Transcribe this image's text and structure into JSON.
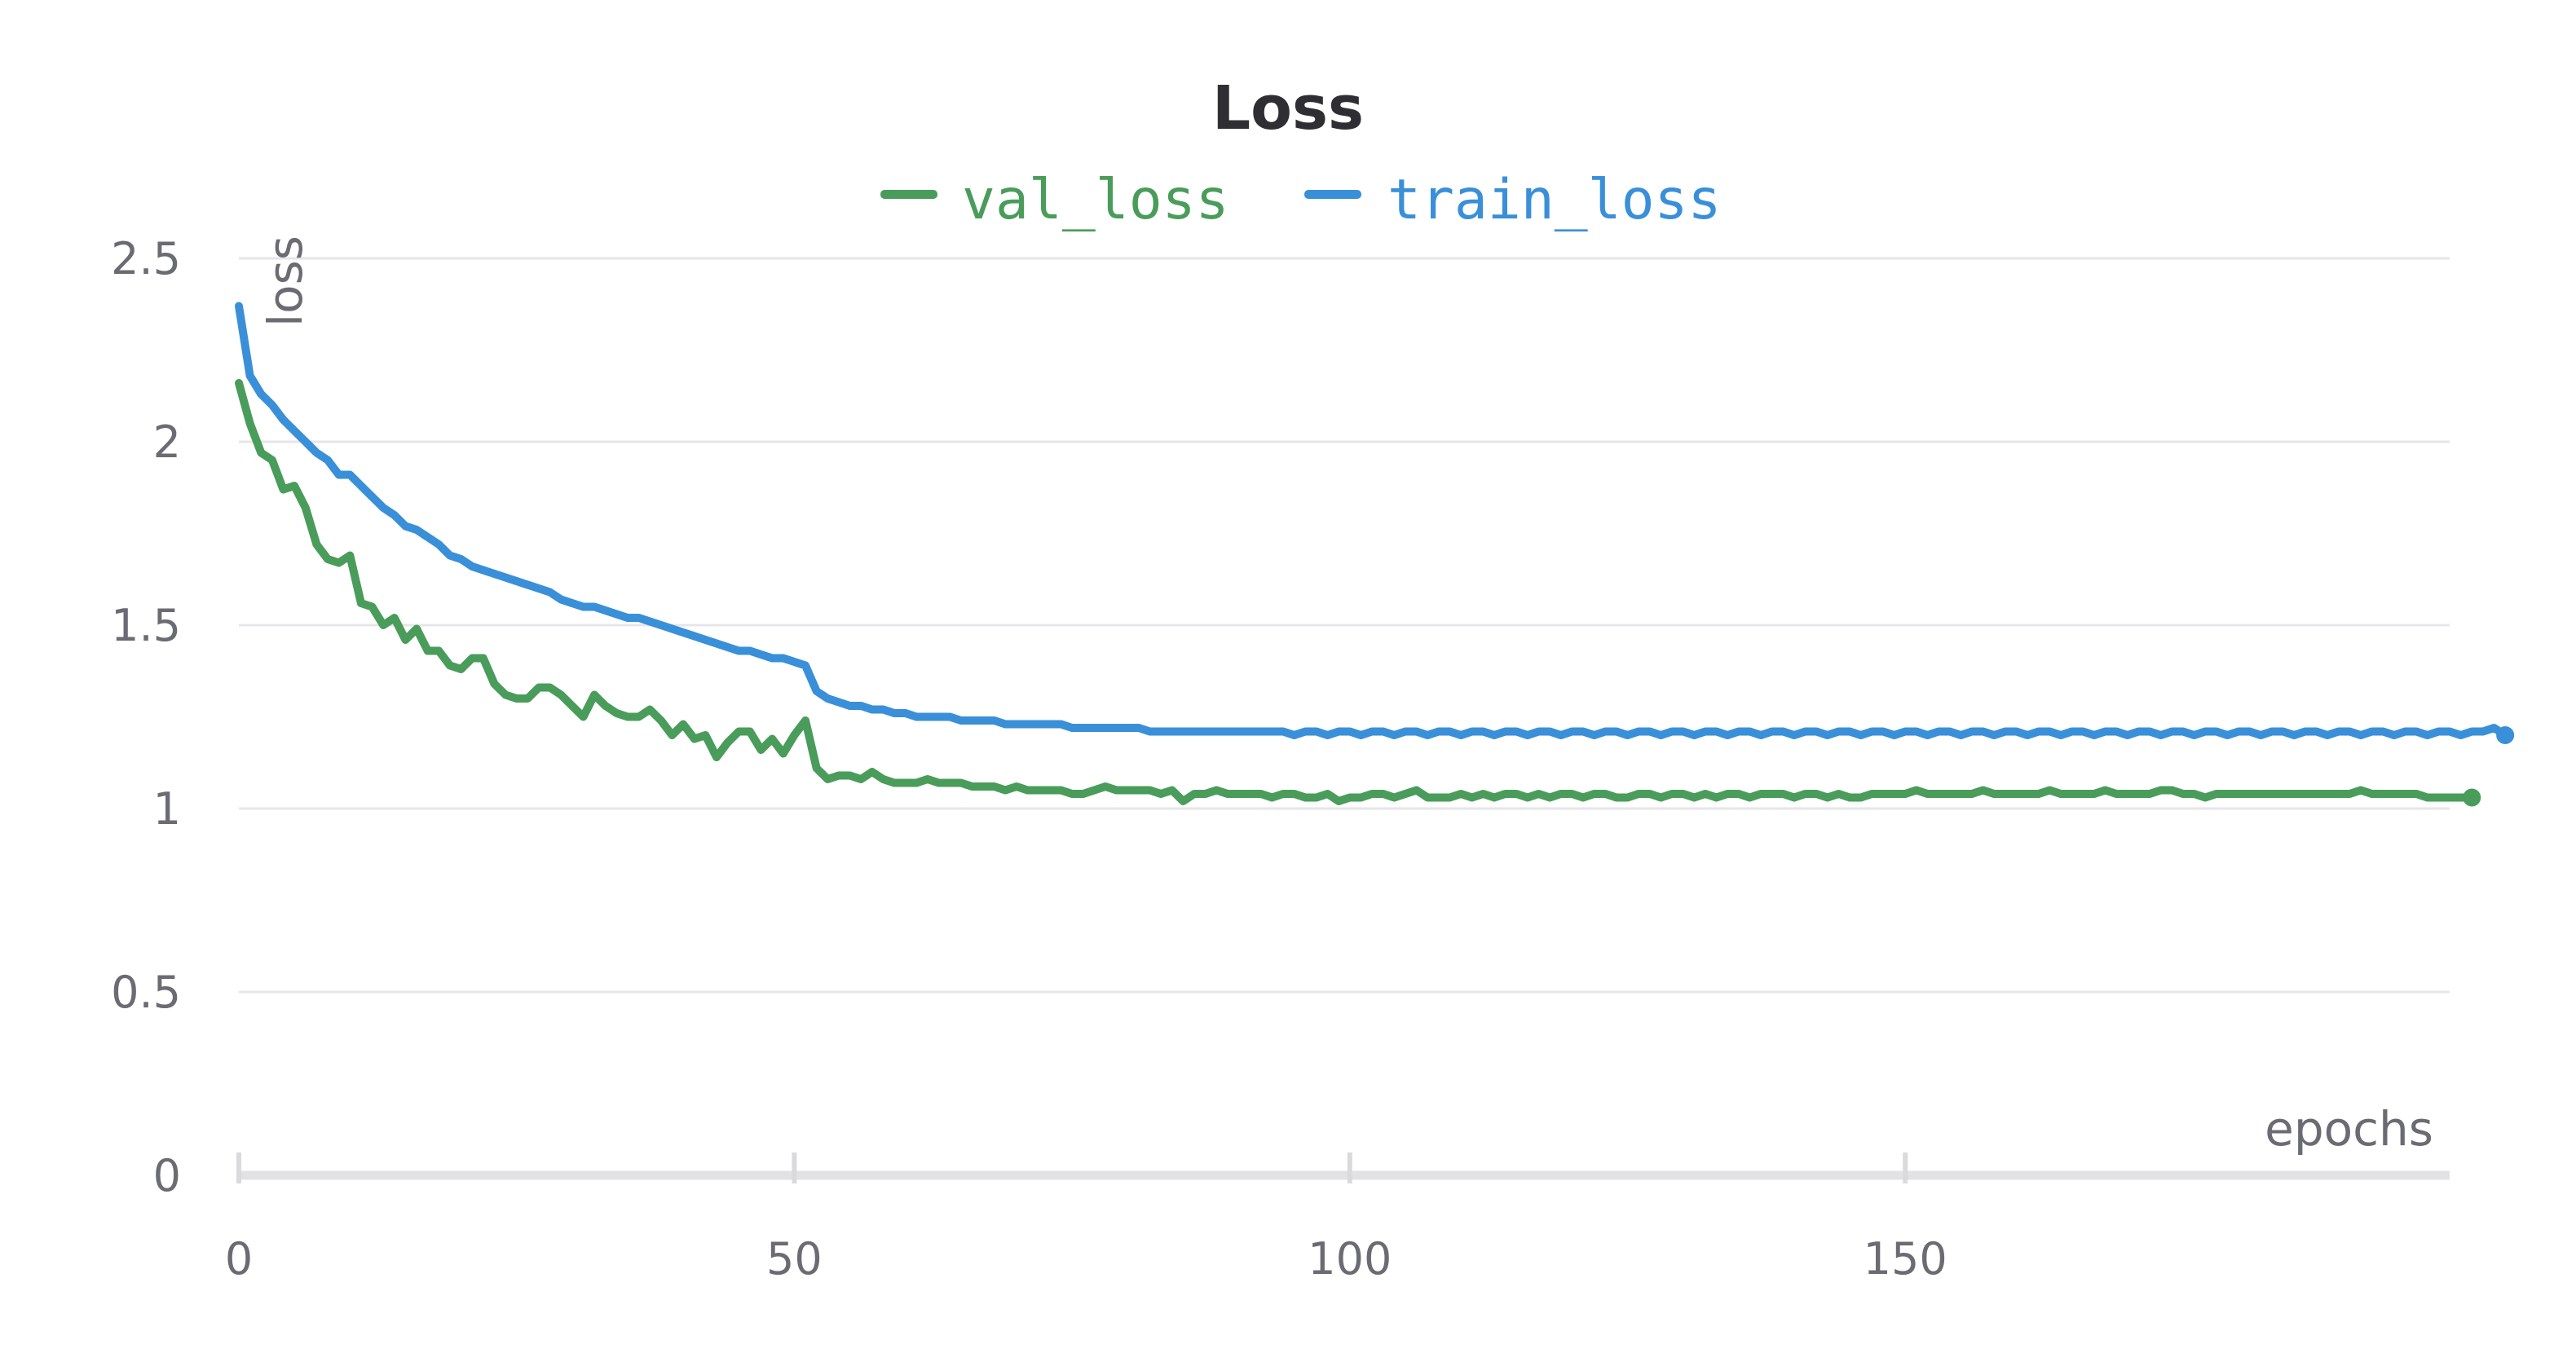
{
  "chart_data": {
    "type": "line",
    "title": "Loss",
    "xlabel": "epochs",
    "ylabel": "loss",
    "xlim": [
      0,
      199
    ],
    "ylim": [
      0,
      2.5
    ],
    "x_ticks": [
      "0",
      "50",
      "100",
      "150"
    ],
    "x_tick_values": [
      0,
      50,
      100,
      150
    ],
    "y_ticks": [
      "0",
      "0.5",
      "1",
      "1.5",
      "2",
      "2.5"
    ],
    "y_tick_values": [
      0,
      0.5,
      1,
      1.5,
      2,
      2.5
    ],
    "grid": true,
    "legend_position": "top-center",
    "series": [
      {
        "name": "val_loss",
        "color": "#4a9c5b",
        "values": [
          2.16,
          2.05,
          1.97,
          1.95,
          1.87,
          1.88,
          1.82,
          1.72,
          1.68,
          1.67,
          1.69,
          1.56,
          1.55,
          1.5,
          1.52,
          1.46,
          1.49,
          1.43,
          1.43,
          1.39,
          1.38,
          1.41,
          1.41,
          1.34,
          1.31,
          1.3,
          1.3,
          1.33,
          1.33,
          1.31,
          1.28,
          1.25,
          1.31,
          1.28,
          1.26,
          1.25,
          1.25,
          1.27,
          1.24,
          1.2,
          1.23,
          1.19,
          1.2,
          1.14,
          1.18,
          1.21,
          1.21,
          1.16,
          1.19,
          1.15,
          1.2,
          1.24,
          1.11,
          1.08,
          1.09,
          1.09,
          1.08,
          1.1,
          1.08,
          1.07,
          1.07,
          1.07,
          1.08,
          1.07,
          1.07,
          1.07,
          1.06,
          1.06,
          1.06,
          1.05,
          1.06,
          1.05,
          1.05,
          1.05,
          1.05,
          1.04,
          1.04,
          1.05,
          1.06,
          1.05,
          1.05,
          1.05,
          1.05,
          1.04,
          1.05,
          1.02,
          1.04,
          1.04,
          1.05,
          1.04,
          1.04,
          1.04,
          1.04,
          1.03,
          1.04,
          1.04,
          1.03,
          1.03,
          1.04,
          1.02,
          1.03,
          1.03,
          1.04,
          1.04,
          1.03,
          1.04,
          1.05,
          1.03,
          1.03,
          1.03,
          1.04,
          1.03,
          1.04,
          1.03,
          1.04,
          1.04,
          1.03,
          1.04,
          1.03,
          1.04,
          1.04,
          1.03,
          1.04,
          1.04,
          1.03,
          1.03,
          1.04,
          1.04,
          1.03,
          1.04,
          1.04,
          1.03,
          1.04,
          1.03,
          1.04,
          1.04,
          1.03,
          1.04,
          1.04,
          1.04,
          1.03,
          1.04,
          1.04,
          1.03,
          1.04,
          1.03,
          1.03,
          1.04,
          1.04,
          1.04,
          1.04,
          1.05,
          1.04,
          1.04,
          1.04,
          1.04,
          1.04,
          1.05,
          1.04,
          1.04,
          1.04,
          1.04,
          1.04,
          1.05,
          1.04,
          1.04,
          1.04,
          1.04,
          1.05,
          1.04,
          1.04,
          1.04,
          1.04,
          1.05,
          1.05,
          1.04,
          1.04,
          1.03,
          1.04,
          1.04,
          1.04,
          1.04,
          1.04,
          1.04,
          1.04,
          1.04,
          1.04,
          1.04,
          1.04,
          1.04,
          1.04,
          1.05,
          1.04,
          1.04,
          1.04,
          1.04,
          1.04,
          1.03,
          1.03,
          1.03,
          1.03,
          1.03
        ]
      },
      {
        "name": "train_loss",
        "color": "#3a8fd9",
        "values": [
          2.37,
          2.18,
          2.13,
          2.1,
          2.06,
          2.03,
          2.0,
          1.97,
          1.95,
          1.91,
          1.91,
          1.88,
          1.85,
          1.82,
          1.8,
          1.77,
          1.76,
          1.74,
          1.72,
          1.69,
          1.68,
          1.66,
          1.65,
          1.64,
          1.63,
          1.62,
          1.61,
          1.6,
          1.59,
          1.57,
          1.56,
          1.55,
          1.55,
          1.54,
          1.53,
          1.52,
          1.52,
          1.51,
          1.5,
          1.49,
          1.48,
          1.47,
          1.46,
          1.45,
          1.44,
          1.43,
          1.43,
          1.42,
          1.41,
          1.41,
          1.4,
          1.39,
          1.32,
          1.3,
          1.29,
          1.28,
          1.28,
          1.27,
          1.27,
          1.26,
          1.26,
          1.25,
          1.25,
          1.25,
          1.25,
          1.24,
          1.24,
          1.24,
          1.24,
          1.23,
          1.23,
          1.23,
          1.23,
          1.23,
          1.23,
          1.22,
          1.22,
          1.22,
          1.22,
          1.22,
          1.22,
          1.22,
          1.21,
          1.21,
          1.21,
          1.21,
          1.21,
          1.21,
          1.21,
          1.21,
          1.21,
          1.21,
          1.21,
          1.21,
          1.21,
          1.2,
          1.21,
          1.21,
          1.2,
          1.21,
          1.21,
          1.2,
          1.21,
          1.21,
          1.2,
          1.21,
          1.21,
          1.2,
          1.21,
          1.21,
          1.2,
          1.21,
          1.21,
          1.2,
          1.21,
          1.21,
          1.2,
          1.21,
          1.21,
          1.2,
          1.21,
          1.21,
          1.2,
          1.21,
          1.21,
          1.2,
          1.21,
          1.21,
          1.2,
          1.21,
          1.21,
          1.2,
          1.21,
          1.21,
          1.2,
          1.21,
          1.21,
          1.2,
          1.21,
          1.21,
          1.2,
          1.21,
          1.21,
          1.2,
          1.21,
          1.21,
          1.2,
          1.21,
          1.21,
          1.2,
          1.21,
          1.21,
          1.2,
          1.21,
          1.21,
          1.2,
          1.21,
          1.21,
          1.2,
          1.21,
          1.21,
          1.2,
          1.21,
          1.21,
          1.2,
          1.21,
          1.21,
          1.2,
          1.21,
          1.21,
          1.2,
          1.21,
          1.21,
          1.2,
          1.21,
          1.21,
          1.2,
          1.21,
          1.21,
          1.2,
          1.21,
          1.21,
          1.2,
          1.21,
          1.21,
          1.2,
          1.21,
          1.21,
          1.2,
          1.21,
          1.21,
          1.2,
          1.21,
          1.21,
          1.2,
          1.21,
          1.21,
          1.2,
          1.21,
          1.21,
          1.2,
          1.21,
          1.21,
          1.22,
          1.2
        ]
      }
    ]
  }
}
